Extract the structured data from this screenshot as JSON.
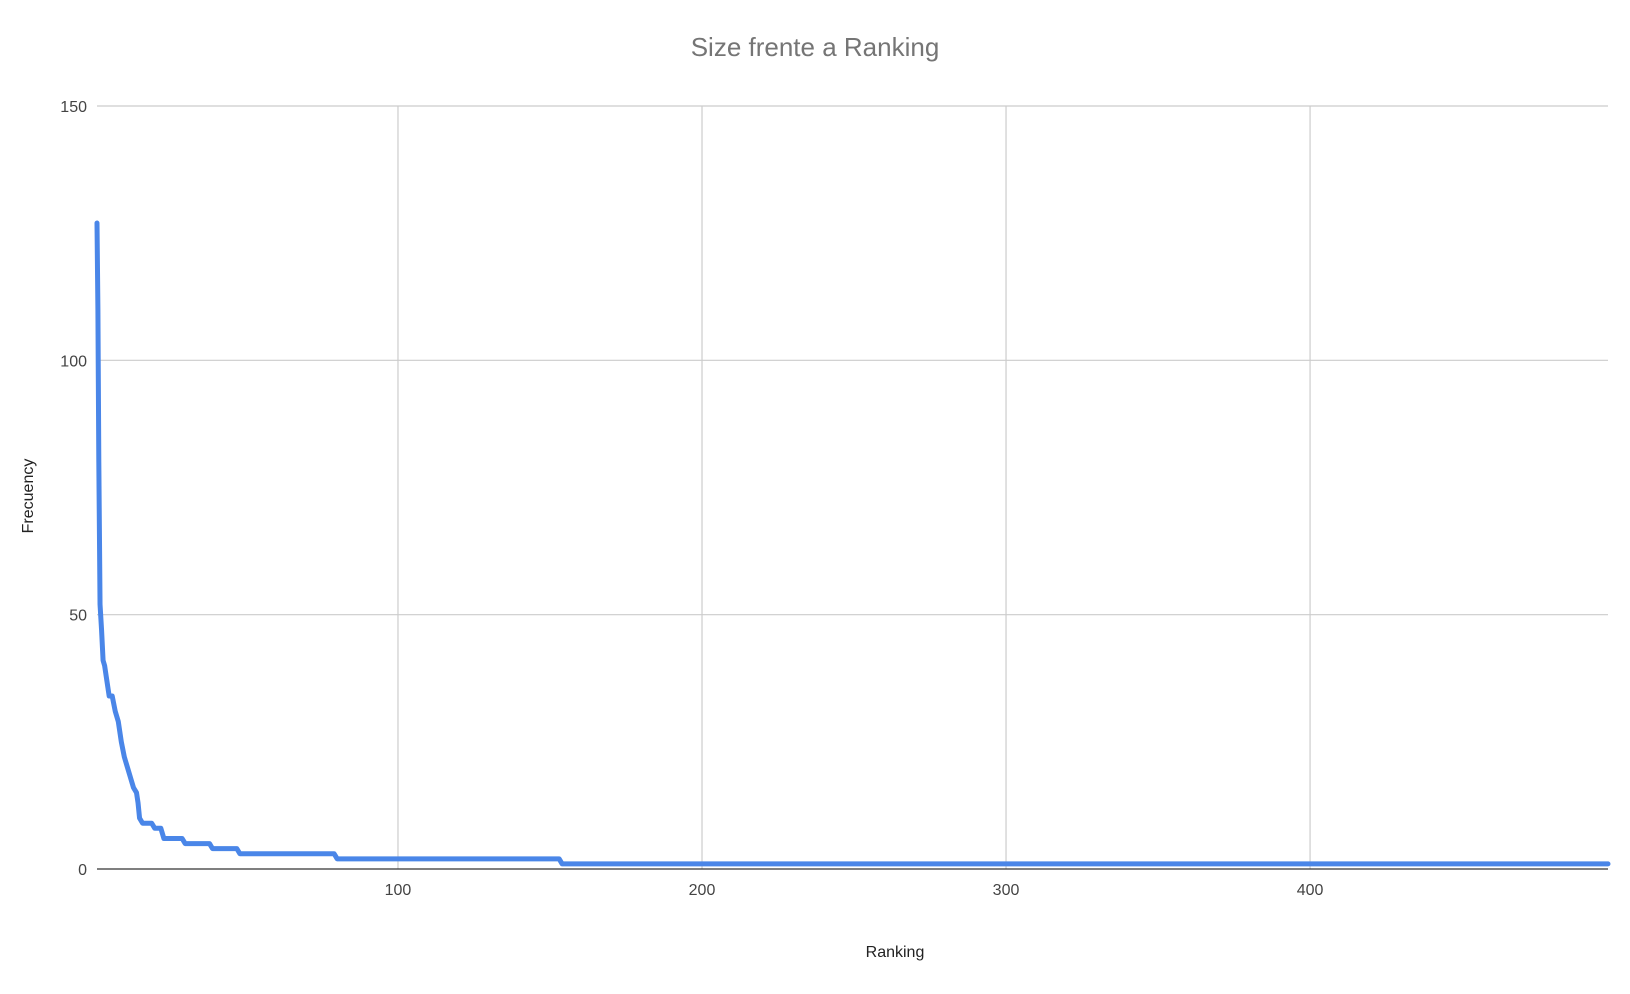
{
  "chart_data": {
    "type": "line",
    "title": "Size frente a Ranking",
    "xlabel": "Ranking",
    "ylabel": "Frecuency",
    "xlim": [
      1,
      498
    ],
    "ylim": [
      0,
      150
    ],
    "x_ticks": [
      100,
      200,
      300,
      400
    ],
    "y_ticks": [
      0,
      50,
      100,
      150
    ],
    "grid": true,
    "legend": "none",
    "color": "#4a86e8",
    "series": [
      {
        "x": [
          1,
          1.3,
          1.6,
          2,
          2.5,
          3,
          3.5,
          4,
          5,
          6,
          7,
          8,
          9,
          10,
          11,
          12,
          13,
          14,
          14.5,
          15,
          16,
          17,
          18,
          19,
          20,
          21,
          22,
          23,
          24,
          29,
          30,
          38,
          39,
          47,
          48,
          79,
          80,
          153,
          154,
          498
        ],
        "y": [
          127,
          110,
          80,
          52,
          47,
          41,
          40,
          38,
          34,
          34,
          31,
          29,
          25,
          22,
          20,
          18,
          16,
          15,
          13,
          10,
          9,
          9,
          9,
          9,
          8,
          8,
          8,
          6,
          6,
          6,
          5,
          5,
          4,
          4,
          3,
          3,
          2,
          2,
          1,
          1
        ]
      }
    ]
  }
}
